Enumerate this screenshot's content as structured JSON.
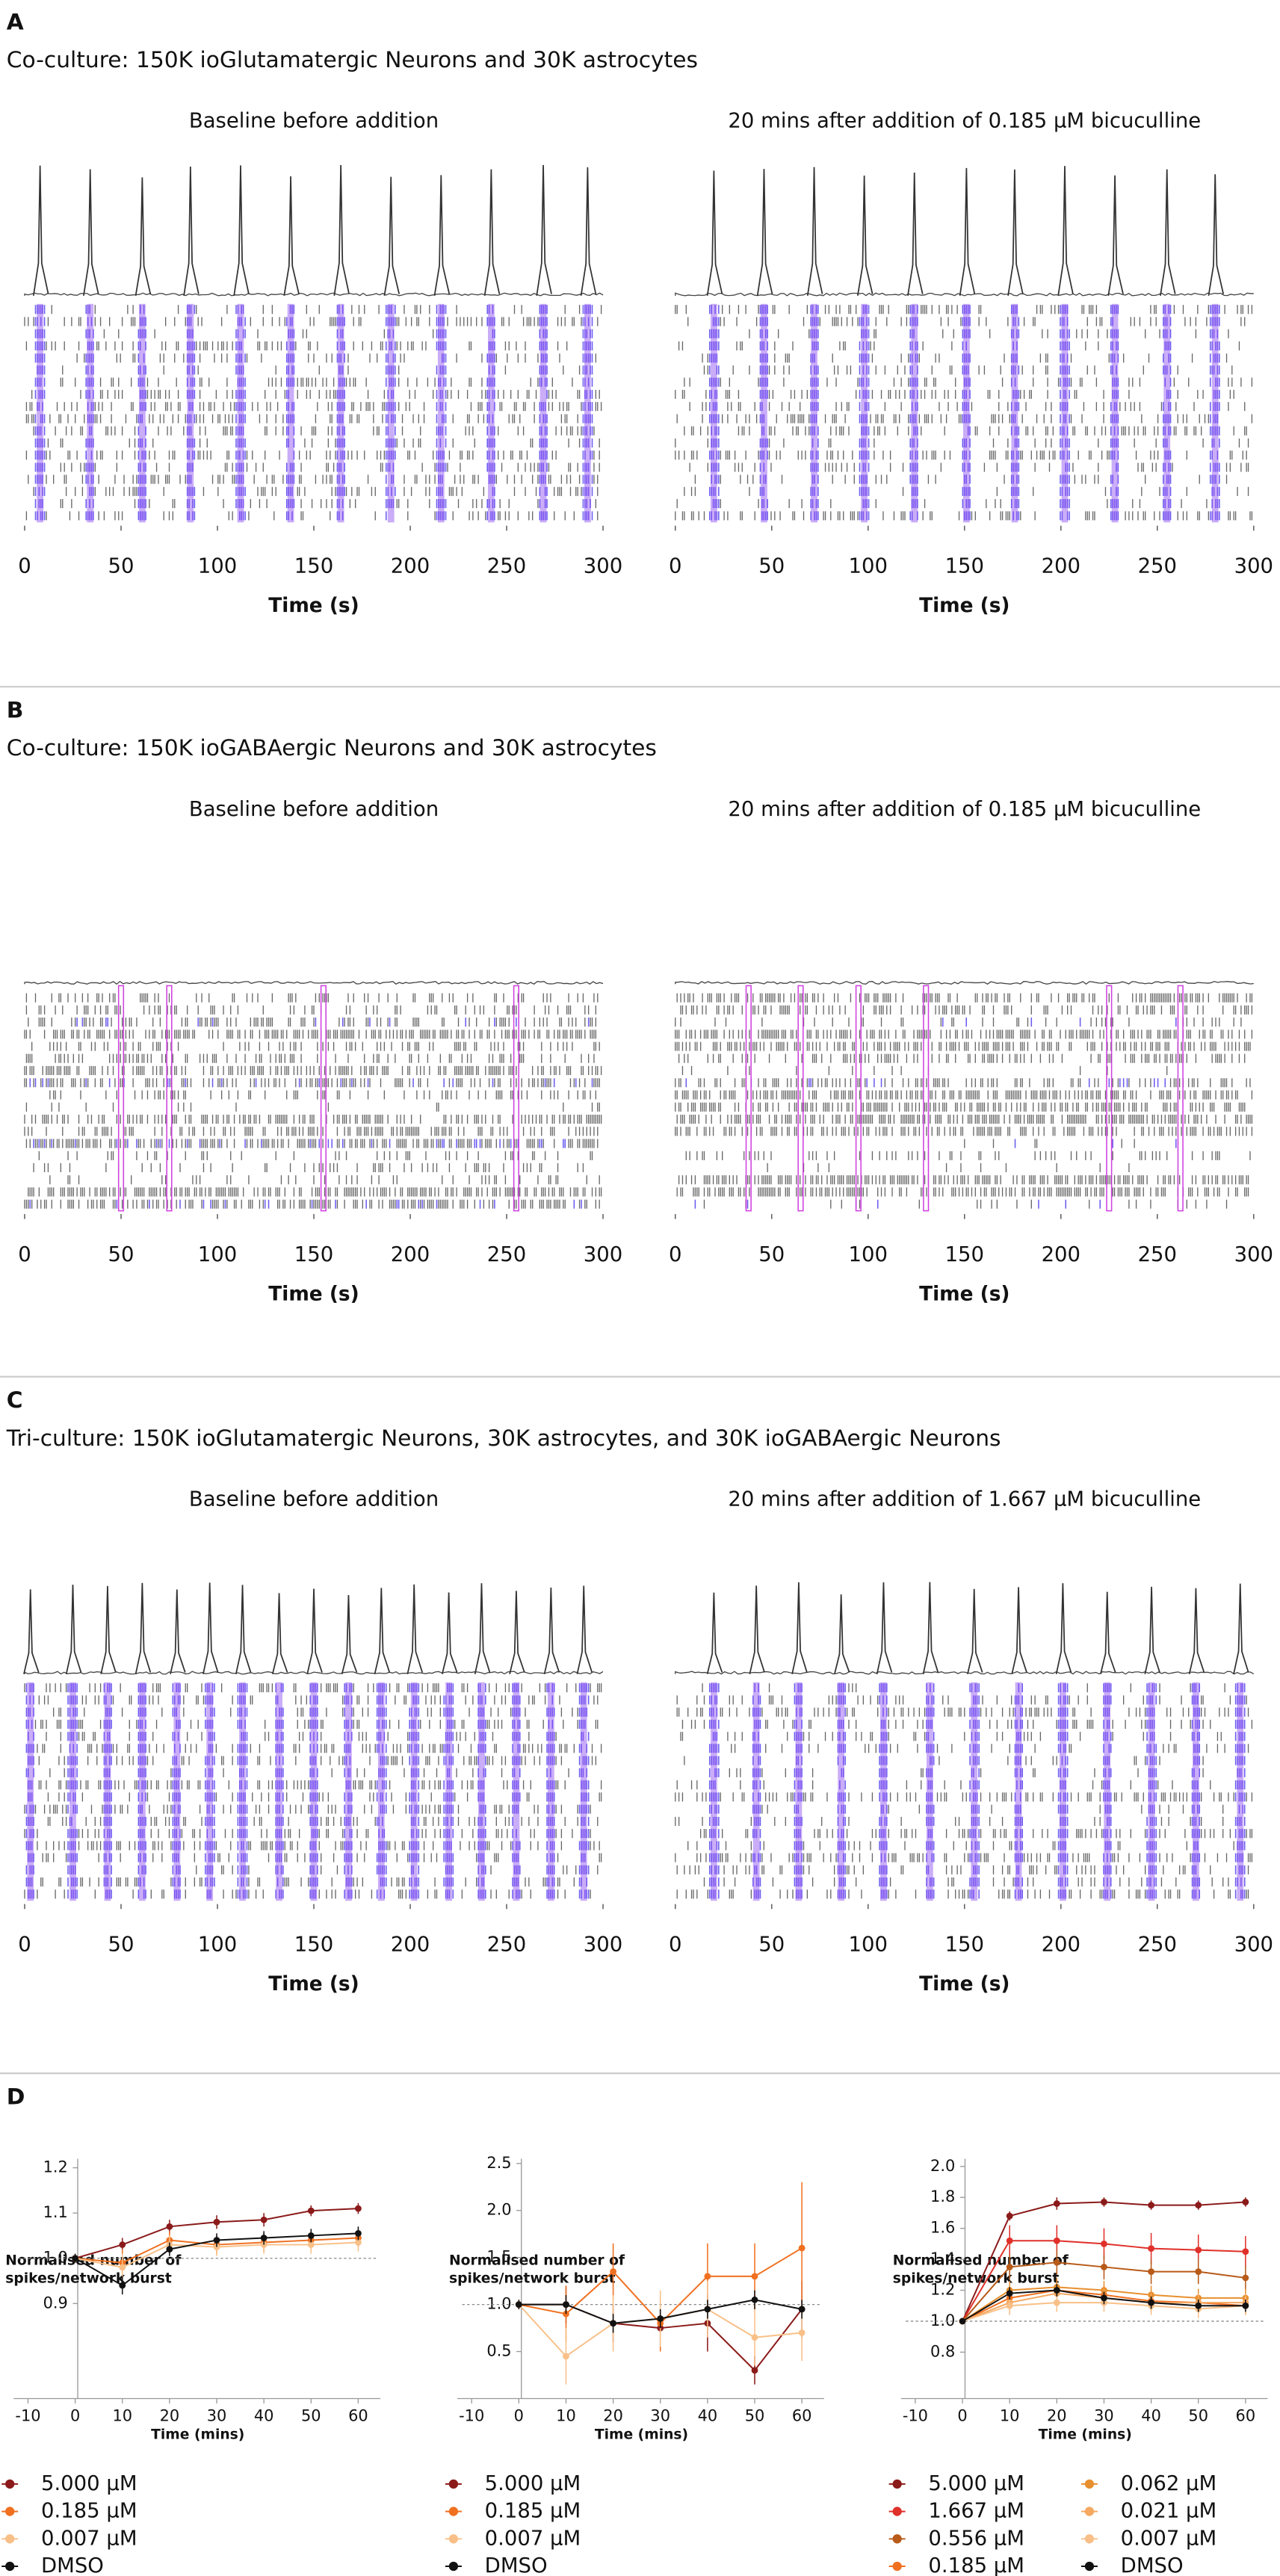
{
  "panels": [
    {
      "label": "A",
      "title": "Co-culture: 150K ioGlutamatergic Neurons and 30K astrocytes",
      "trace_peaks": true,
      "xlim": [
        0,
        300
      ],
      "xticks": [
        0,
        50,
        100,
        150,
        200,
        250,
        300
      ],
      "xlabel": "Time (s)",
      "plots": [
        {
          "subtitle": "Baseline before addition",
          "bursts": [
            8,
            34,
            61,
            86,
            112,
            138,
            164,
            190,
            216,
            242,
            269,
            292
          ]
        },
        {
          "subtitle": "20 mins after addition of 0.185 µM bicuculline",
          "bursts": [
            20,
            46,
            72,
            98,
            124,
            151,
            176,
            202,
            228,
            255,
            280
          ]
        }
      ]
    },
    {
      "label": "B",
      "title": "Co-culture: 150K ioGABAergic Neurons and 30K astrocytes",
      "trace_peaks": false,
      "xlim": [
        0,
        300
      ],
      "xticks": [
        0,
        50,
        100,
        150,
        200,
        250,
        300
      ],
      "xlabel": "Time (s)",
      "plots": [
        {
          "subtitle": "Baseline before addition",
          "bursts": [
            50,
            75,
            155,
            255
          ]
        },
        {
          "subtitle": "20 mins after addition of 0.185 µM bicuculline",
          "bursts": [
            38,
            65,
            95,
            130,
            225,
            262
          ]
        }
      ]
    },
    {
      "label": "C",
      "title": "Tri-culture: 150K ioGlutamatergic Neurons, 30K astrocytes, and 30K ioGABAergic Neurons",
      "trace_peaks": true,
      "xlim": [
        0,
        300
      ],
      "xticks": [
        0,
        50,
        100,
        150,
        200,
        250,
        300
      ],
      "xlabel": "Time (s)",
      "plots": [
        {
          "subtitle": "Baseline before addition",
          "bursts": [
            3,
            25,
            43,
            61,
            79,
            96,
            113,
            132,
            150,
            168,
            185,
            202,
            220,
            237,
            255,
            273,
            290
          ]
        },
        {
          "subtitle": "20 mins after addition of 1.667 µM bicuculline",
          "bursts": [
            20,
            42,
            64,
            86,
            108,
            132,
            155,
            178,
            201,
            224,
            247,
            270,
            293
          ]
        }
      ]
    }
  ],
  "panel_d": {
    "label": "D",
    "charts": [
      {
        "type": "line",
        "ylabel": [
          "Normalised number of",
          "spikes/network burst"
        ],
        "xlabel": "Time (mins)",
        "x": [
          0,
          10,
          20,
          30,
          40,
          50,
          60
        ],
        "xlim": [
          -12,
          64
        ],
        "xticks": [
          -10,
          0,
          10,
          20,
          30,
          40,
          50,
          60
        ],
        "ylim": [
          0.69,
          1.22
        ],
        "yticks": [
          0.9,
          {
            "value": 1,
            "label": "1.0"
          },
          1.1,
          1.2
        ],
        "ref_line": 1,
        "series": [
          {
            "name": "5.000 µM",
            "color": "#8b1a1a",
            "values": [
              1.0,
              1.03,
              1.07,
              1.08,
              1.085,
              1.105,
              1.11
            ],
            "errors": [
              0.01,
              0.015,
              0.015,
              0.015,
              0.015,
              0.012,
              0.012
            ]
          },
          {
            "name": "0.185 µM",
            "color": "#f07020",
            "values": [
              1.0,
              0.99,
              1.04,
              1.03,
              1.035,
              1.04,
              1.045
            ],
            "errors": [
              0.01,
              0.03,
              0.02,
              0.02,
              0.02,
              0.02,
              0.02
            ]
          },
          {
            "name": "0.007 µM",
            "color": "#f8c088",
            "values": [
              1.0,
              0.98,
              1.03,
              1.025,
              1.03,
              1.03,
              1.035
            ],
            "errors": [
              0.01,
              0.03,
              0.02,
              0.02,
              0.02,
              0.02,
              0.02
            ]
          },
          {
            "name": "DMSO",
            "color": "#111111",
            "values": [
              1.0,
              0.94,
              1.02,
              1.04,
              1.045,
              1.05,
              1.055
            ],
            "errors": [
              0.01,
              0.02,
              0.015,
              0.015,
              0.015,
              0.015,
              0.015
            ]
          }
        ]
      },
      {
        "type": "line",
        "ylabel": [
          "Normalised number of",
          "spikes/network burst"
        ],
        "xlabel": "Time (mins)",
        "x": [
          0,
          10,
          20,
          30,
          40,
          50,
          60
        ],
        "xlim": [
          -12,
          64
        ],
        "xticks": [
          -10,
          0,
          10,
          20,
          30,
          40,
          50,
          60
        ],
        "ylim": [
          0,
          2.55
        ],
        "yticks": [
          0.5,
          {
            "value": 1,
            "label": "1.0"
          },
          1.5,
          {
            "value": 2,
            "label": "2.0"
          },
          2.5
        ],
        "ref_line": 1,
        "series": [
          {
            "name": "5.000 µM",
            "color": "#8b1a1a",
            "values": [
              1.0,
              1.0,
              0.8,
              0.75,
              0.8,
              0.3,
              0.95
            ],
            "errors": [
              0.05,
              0.2,
              0.2,
              0.2,
              0.3,
              0.15,
              0.3
            ]
          },
          {
            "name": "0.185 µM",
            "color": "#f07020",
            "values": [
              1.0,
              0.9,
              1.35,
              0.8,
              1.3,
              1.3,
              1.6
            ],
            "errors": [
              0.05,
              0.3,
              0.3,
              0.3,
              0.35,
              0.35,
              0.7
            ]
          },
          {
            "name": "0.007 µM",
            "color": "#f8c088",
            "values": [
              1.0,
              0.45,
              0.8,
              0.85,
              0.95,
              0.65,
              0.7
            ],
            "errors": [
              0.05,
              0.3,
              0.3,
              0.3,
              0.3,
              0.3,
              0.3
            ]
          },
          {
            "name": "DMSO",
            "color": "#111111",
            "values": [
              1.0,
              1.0,
              0.8,
              0.85,
              0.95,
              1.05,
              0.95
            ],
            "errors": [
              0.05,
              0.1,
              0.1,
              0.1,
              0.1,
              0.1,
              0.1
            ]
          }
        ]
      },
      {
        "type": "line",
        "ylabel": [
          "Normalised number of",
          "spikes/network burst"
        ],
        "xlabel": "Time (mins)",
        "x": [
          0,
          10,
          20,
          30,
          40,
          50,
          60
        ],
        "xlim": [
          -12,
          64
        ],
        "xticks": [
          -10,
          0,
          10,
          20,
          30,
          40,
          50,
          60
        ],
        "ylim": [
          0.5,
          2.05
        ],
        "yticks": [
          0.8,
          {
            "value": 1,
            "label": "1.0"
          },
          1.2,
          1.4,
          1.6,
          1.8,
          {
            "value": 2,
            "label": "2.0"
          }
        ],
        "ref_line": 1,
        "series": [
          {
            "name": "5.000 µM",
            "color": "#8b1a1a",
            "values": [
              1.0,
              1.68,
              1.76,
              1.77,
              1.75,
              1.75,
              1.77
            ],
            "errors": [
              0.01,
              0.03,
              0.04,
              0.03,
              0.03,
              0.03,
              0.03
            ]
          },
          {
            "name": "1.667 µM",
            "color": "#e0302a",
            "values": [
              1.0,
              1.52,
              1.52,
              1.5,
              1.47,
              1.46,
              1.45
            ],
            "errors": [
              0.01,
              0.1,
              0.1,
              0.1,
              0.1,
              0.1,
              0.1
            ]
          },
          {
            "name": "0.556 µM",
            "color": "#b85a18",
            "values": [
              1.0,
              1.35,
              1.38,
              1.35,
              1.32,
              1.32,
              1.28
            ],
            "errors": [
              0.01,
              0.08,
              0.08,
              0.08,
              0.08,
              0.08,
              0.08
            ]
          },
          {
            "name": "0.185 µM",
            "color": "#f07020",
            "values": [
              1.0,
              1.15,
              1.2,
              1.17,
              1.13,
              1.12,
              1.1
            ],
            "errors": [
              0.01,
              0.06,
              0.06,
              0.06,
              0.06,
              0.06,
              0.06
            ]
          },
          {
            "name": "0.062 µM",
            "color": "#e89030",
            "values": [
              1.0,
              1.2,
              1.22,
              1.2,
              1.17,
              1.15,
              1.15
            ],
            "errors": [
              0.01,
              0.06,
              0.06,
              0.06,
              0.06,
              0.06,
              0.06
            ]
          },
          {
            "name": "0.021 µM",
            "color": "#f5a860",
            "values": [
              1.0,
              1.12,
              1.18,
              1.15,
              1.12,
              1.12,
              1.12
            ],
            "errors": [
              0.01,
              0.06,
              0.06,
              0.06,
              0.06,
              0.06,
              0.06
            ]
          },
          {
            "name": "0.007 µM",
            "color": "#f8c088",
            "values": [
              1.0,
              1.1,
              1.12,
              1.12,
              1.1,
              1.08,
              1.1
            ],
            "errors": [
              0.01,
              0.06,
              0.06,
              0.06,
              0.06,
              0.06,
              0.06
            ]
          },
          {
            "name": "DMSO",
            "color": "#111111",
            "values": [
              1.0,
              1.18,
              1.2,
              1.15,
              1.12,
              1.1,
              1.1
            ],
            "errors": [
              0.01,
              0.04,
              0.04,
              0.04,
              0.04,
              0.04,
              0.04
            ]
          }
        ]
      }
    ]
  }
}
